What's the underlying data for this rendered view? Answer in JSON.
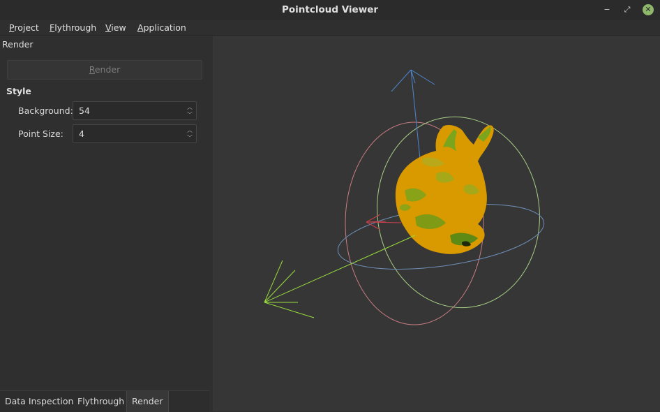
{
  "window": {
    "title": "Pointcloud Viewer",
    "minimize_glyph": "−",
    "maximize_glyph": "⤢",
    "close_glyph": "✕"
  },
  "menubar": {
    "items": [
      {
        "first": "P",
        "rest": "roject"
      },
      {
        "first": "F",
        "rest": "lythrough"
      },
      {
        "first": "V",
        "rest": "iew"
      },
      {
        "first": "A",
        "rest": "pplication"
      }
    ]
  },
  "panel": {
    "title": "Render",
    "render_button": {
      "first": "R",
      "rest": "ender"
    },
    "style_group": {
      "title": "Style",
      "background_label": "Background:",
      "background_value": "54",
      "point_size_label": "Point Size:",
      "point_size_value": "4"
    }
  },
  "tabs": [
    "Data Inspection",
    "Flythrough",
    "Render"
  ],
  "viewport": {
    "background_color": "#363636",
    "axis_colors": {
      "x": "#c8404a",
      "y": "#9ade3c",
      "z": "#4f86d0"
    },
    "ring_colors": {
      "red": "#c97d83",
      "green": "#a8cf86",
      "blue": "#6f8fb8"
    },
    "model_colors": {
      "primary": "#d99a00",
      "secondary": "#7aa51c"
    }
  }
}
